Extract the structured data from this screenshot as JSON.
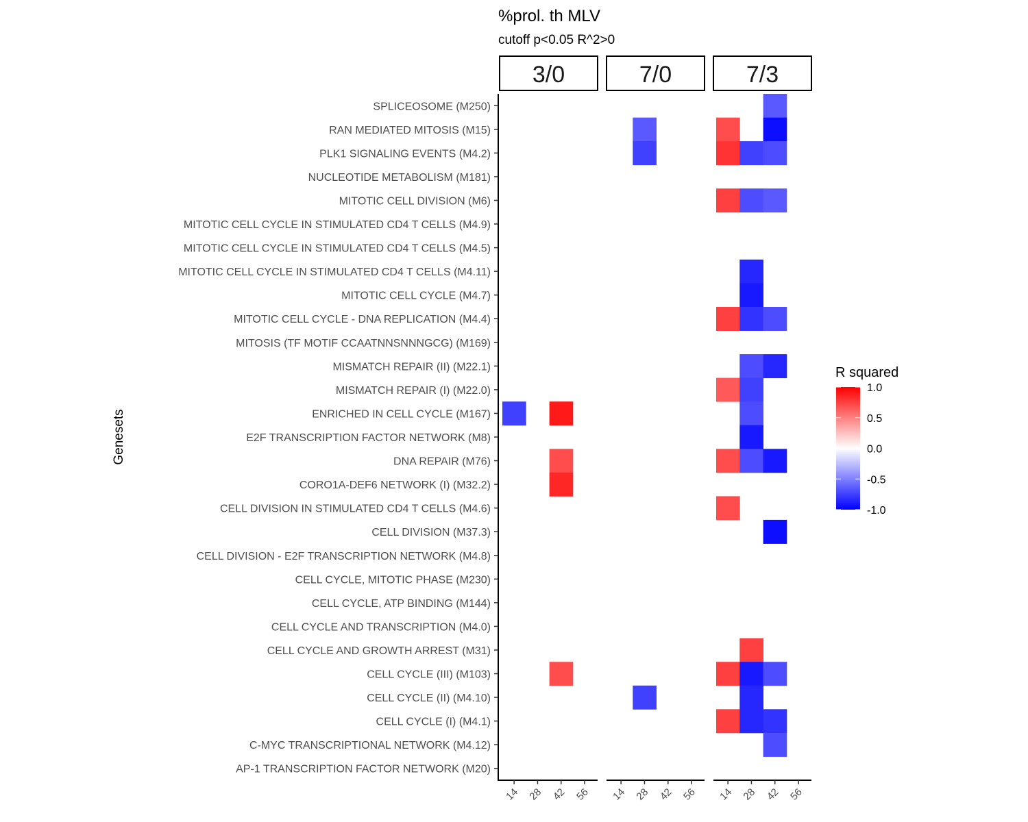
{
  "chart_data": {
    "type": "heatmap",
    "title": "%prol. th MLV",
    "subtitle": "cutoff p<0.05 R^2>0",
    "ylabel": "Genesets",
    "xlabel": "",
    "facets": [
      "3/0",
      "7/0",
      "7/3"
    ],
    "x": [
      "14",
      "28",
      "42",
      "56"
    ],
    "y": [
      "SPLICEOSOME (M250)",
      "RAN MEDIATED MITOSIS (M15)",
      "PLK1 SIGNALING EVENTS (M4.2)",
      "NUCLEOTIDE METABOLISM (M181)",
      "MITOTIC CELL DIVISION (M6)",
      "MITOTIC CELL CYCLE IN STIMULATED CD4 T CELLS (M4.9)",
      "MITOTIC CELL CYCLE IN STIMULATED CD4 T CELLS (M4.5)",
      "MITOTIC CELL CYCLE IN STIMULATED CD4 T CELLS (M4.11)",
      "MITOTIC CELL CYCLE (M4.7)",
      "MITOTIC CELL CYCLE - DNA REPLICATION (M4.4)",
      "MITOSIS (TF MOTIF CCAATNNSNNNGCG) (M169)",
      "MISMATCH REPAIR (II) (M22.1)",
      "MISMATCH REPAIR (I) (M22.0)",
      "ENRICHED IN CELL CYCLE (M167)",
      "E2F TRANSCRIPTION FACTOR NETWORK (M8)",
      "DNA REPAIR (M76)",
      "CORO1A-DEF6 NETWORK (I) (M32.2)",
      "CELL DIVISION IN STIMULATED CD4 T CELLS (M4.6)",
      "CELL DIVISION (M37.3)",
      "CELL DIVISION - E2F TRANSCRIPTION NETWORK (M4.8)",
      "CELL CYCLE, MITOTIC PHASE (M230)",
      "CELL CYCLE, ATP BINDING (M144)",
      "CELL CYCLE AND TRANSCRIPTION (M4.0)",
      "CELL CYCLE AND GROWTH ARREST (M31)",
      "CELL CYCLE (III) (M103)",
      "CELL CYCLE (II) (M4.10)",
      "CELL CYCLE (I) (M4.1)",
      "C-MYC TRANSCRIPTIONAL NETWORK (M4.12)",
      "AP-1 TRANSCRIPTION FACTOR NETWORK (M20)"
    ],
    "cells": [
      {
        "facet": "3/0",
        "x": "14",
        "y": "ENRICHED IN CELL CYCLE (M167)",
        "value": -0.75
      },
      {
        "facet": "3/0",
        "x": "42",
        "y": "ENRICHED IN CELL CYCLE (M167)",
        "value": 0.9
      },
      {
        "facet": "3/0",
        "x": "42",
        "y": "DNA REPAIR (M76)",
        "value": 0.7
      },
      {
        "facet": "3/0",
        "x": "42",
        "y": "CORO1A-DEF6 NETWORK (I) (M32.2)",
        "value": 0.85
      },
      {
        "facet": "3/0",
        "x": "42",
        "y": "CELL CYCLE (III) (M103)",
        "value": 0.7
      },
      {
        "facet": "7/0",
        "x": "28",
        "y": "RAN MEDIATED MITOSIS (M15)",
        "value": -0.65
      },
      {
        "facet": "7/0",
        "x": "28",
        "y": "PLK1 SIGNALING EVENTS (M4.2)",
        "value": -0.75
      },
      {
        "facet": "7/0",
        "x": "28",
        "y": "CELL CYCLE (II) (M4.10)",
        "value": -0.75
      },
      {
        "facet": "7/3",
        "x": "42",
        "y": "SPLICEOSOME (M250)",
        "value": -0.65
      },
      {
        "facet": "7/3",
        "x": "14",
        "y": "RAN MEDIATED MITOSIS (M15)",
        "value": 0.7
      },
      {
        "facet": "7/3",
        "x": "42",
        "y": "RAN MEDIATED MITOSIS (M15)",
        "value": -0.95
      },
      {
        "facet": "7/3",
        "x": "14",
        "y": "PLK1 SIGNALING EVENTS (M4.2)",
        "value": 0.8
      },
      {
        "facet": "7/3",
        "x": "28",
        "y": "PLK1 SIGNALING EVENTS (M4.2)",
        "value": -0.75
      },
      {
        "facet": "7/3",
        "x": "42",
        "y": "PLK1 SIGNALING EVENTS (M4.2)",
        "value": -0.7
      },
      {
        "facet": "7/3",
        "x": "14",
        "y": "MITOTIC CELL DIVISION (M6)",
        "value": 0.75
      },
      {
        "facet": "7/3",
        "x": "28",
        "y": "MITOTIC CELL DIVISION (M6)",
        "value": -0.7
      },
      {
        "facet": "7/3",
        "x": "42",
        "y": "MITOTIC CELL DIVISION (M6)",
        "value": -0.65
      },
      {
        "facet": "7/3",
        "x": "28",
        "y": "MITOTIC CELL CYCLE IN STIMULATED CD4 T CELLS (M4.11)",
        "value": -0.85
      },
      {
        "facet": "7/3",
        "x": "28",
        "y": "MITOTIC CELL CYCLE (M4.7)",
        "value": -0.9
      },
      {
        "facet": "7/3",
        "x": "14",
        "y": "MITOTIC CELL CYCLE - DNA REPLICATION (M4.4)",
        "value": 0.75
      },
      {
        "facet": "7/3",
        "x": "28",
        "y": "MITOTIC CELL CYCLE - DNA REPLICATION (M4.4)",
        "value": -0.8
      },
      {
        "facet": "7/3",
        "x": "42",
        "y": "MITOTIC CELL CYCLE - DNA REPLICATION (M4.4)",
        "value": -0.7
      },
      {
        "facet": "7/3",
        "x": "28",
        "y": "MISMATCH REPAIR (II) (M22.1)",
        "value": -0.7
      },
      {
        "facet": "7/3",
        "x": "42",
        "y": "MISMATCH REPAIR (II) (M22.1)",
        "value": -0.85
      },
      {
        "facet": "7/3",
        "x": "14",
        "y": "MISMATCH REPAIR (I) (M22.0)",
        "value": 0.65
      },
      {
        "facet": "7/3",
        "x": "28",
        "y": "MISMATCH REPAIR (I) (M22.0)",
        "value": -0.75
      },
      {
        "facet": "7/3",
        "x": "28",
        "y": "ENRICHED IN CELL CYCLE (M167)",
        "value": -0.7
      },
      {
        "facet": "7/3",
        "x": "28",
        "y": "E2F TRANSCRIPTION FACTOR NETWORK (M8)",
        "value": -0.9
      },
      {
        "facet": "7/3",
        "x": "14",
        "y": "DNA REPAIR (M76)",
        "value": 0.7
      },
      {
        "facet": "7/3",
        "x": "28",
        "y": "DNA REPAIR (M76)",
        "value": -0.7
      },
      {
        "facet": "7/3",
        "x": "42",
        "y": "DNA REPAIR (M76)",
        "value": -0.9
      },
      {
        "facet": "7/3",
        "x": "14",
        "y": "CELL DIVISION IN STIMULATED CD4 T CELLS (M4.6)",
        "value": 0.7
      },
      {
        "facet": "7/3",
        "x": "42",
        "y": "CELL DIVISION (M37.3)",
        "value": -0.95
      },
      {
        "facet": "7/3",
        "x": "28",
        "y": "CELL CYCLE AND GROWTH ARREST (M31)",
        "value": 0.75
      },
      {
        "facet": "7/3",
        "x": "14",
        "y": "CELL CYCLE (III) (M103)",
        "value": 0.75
      },
      {
        "facet": "7/3",
        "x": "28",
        "y": "CELL CYCLE (III) (M103)",
        "value": -0.9
      },
      {
        "facet": "7/3",
        "x": "42",
        "y": "CELL CYCLE (III) (M103)",
        "value": -0.7
      },
      {
        "facet": "7/3",
        "x": "28",
        "y": "CELL CYCLE (II) (M4.10)",
        "value": -0.85
      },
      {
        "facet": "7/3",
        "x": "14",
        "y": "CELL CYCLE (I) (M4.1)",
        "value": 0.75
      },
      {
        "facet": "7/3",
        "x": "28",
        "y": "CELL CYCLE (I) (M4.1)",
        "value": -0.85
      },
      {
        "facet": "7/3",
        "x": "42",
        "y": "CELL CYCLE (I) (M4.1)",
        "value": -0.8
      },
      {
        "facet": "7/3",
        "x": "42",
        "y": "C-MYC TRANSCRIPTIONAL NETWORK (M4.12)",
        "value": -0.7
      }
    ],
    "legend": {
      "title": "R squared",
      "ticks": [
        "1.0",
        "0.5",
        "0.0",
        "-0.5",
        "-1.0"
      ],
      "range": [
        -1,
        1
      ],
      "colors": {
        "low": "#0000FF",
        "mid": "#FFFFFF",
        "high": "#FF0000"
      }
    }
  }
}
